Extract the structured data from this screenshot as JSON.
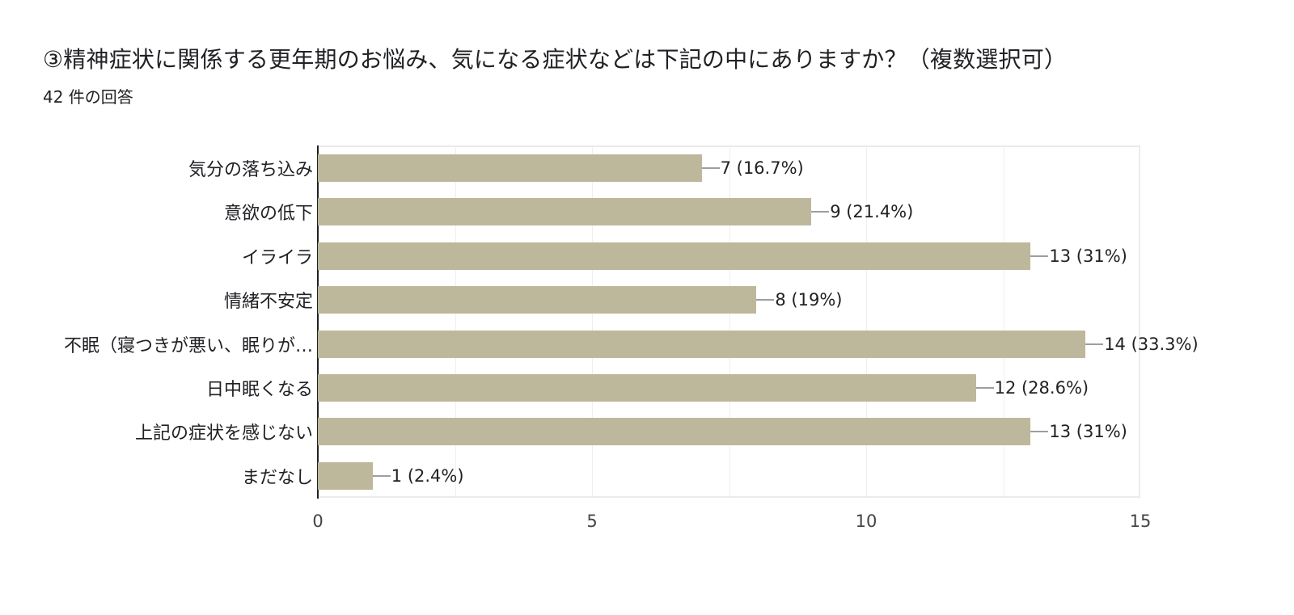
{
  "header": {
    "title": "③精神症状に関係する更年期のお悩み、気になる症状などは下記の中にありますか？（複数選択可）",
    "response_count": "42 件の回答"
  },
  "colors": {
    "bar": "#bdb89c",
    "axis": "#202124",
    "grid": "#efefef",
    "leader": "#9e9e9e"
  },
  "chart_data": {
    "type": "bar",
    "orientation": "horizontal",
    "title": "③精神症状に関係する更年期のお悩み、気になる症状などは下記の中にありますか？（複数選択可）",
    "subtitle": "42 件の回答",
    "xlabel": "",
    "ylabel": "",
    "xlim": [
      0,
      15
    ],
    "x_ticks": [
      "0",
      "5",
      "10",
      "15"
    ],
    "grid": true,
    "legend": "none",
    "categories": [
      "気分の落ち込み",
      "意欲の低下",
      "イライラ",
      "情緒不安定",
      "不眠（寝つきが悪い、眠りが…",
      "日中眠くなる",
      "上記の症状を感じない",
      "まだなし"
    ],
    "values": [
      7,
      9,
      13,
      8,
      14,
      12,
      13,
      1
    ],
    "percentages": [
      "16.7%",
      "21.4%",
      "31%",
      "19%",
      "33.3%",
      "28.6%",
      "31%",
      "2.4%"
    ],
    "data_labels": [
      "7 (16.7%)",
      "9 (21.4%)",
      "13 (31%)",
      "8 (19%)",
      "14 (33.3%)",
      "12 (28.6%)",
      "13 (31%)",
      "1 (2.4%)"
    ]
  }
}
